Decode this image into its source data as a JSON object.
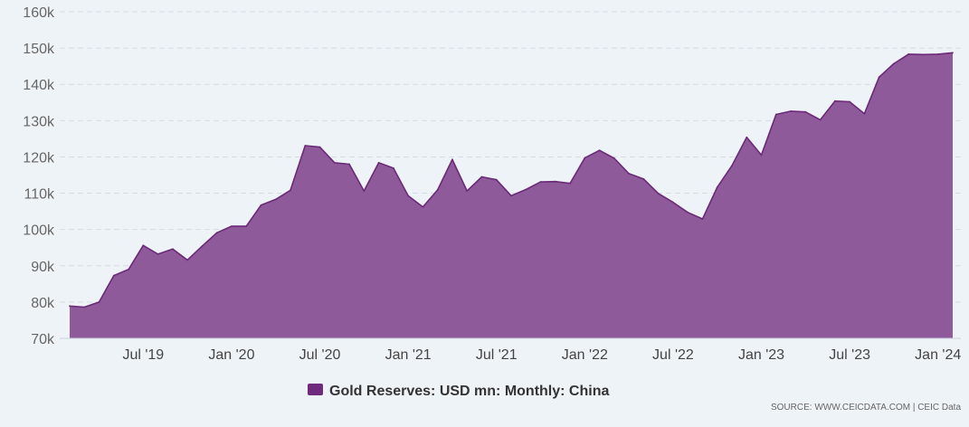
{
  "chart_data": {
    "type": "area",
    "title": "",
    "xlabel": "",
    "ylabel": "",
    "ylim": [
      70000,
      160000
    ],
    "grid": true,
    "legend_position": "bottom",
    "colors": {
      "fill": "#8e5a9a",
      "line": "#6b2a78",
      "legend": "#6f2a7e",
      "grid": "#d5dde6",
      "background": "#eef3f8"
    },
    "y_ticks": [
      {
        "value": 70000,
        "label": "70k"
      },
      {
        "value": 80000,
        "label": "80k"
      },
      {
        "value": 90000,
        "label": "90k"
      },
      {
        "value": 100000,
        "label": "100k"
      },
      {
        "value": 110000,
        "label": "110k"
      },
      {
        "value": 120000,
        "label": "120k"
      },
      {
        "value": 130000,
        "label": "130k"
      },
      {
        "value": 140000,
        "label": "140k"
      },
      {
        "value": 150000,
        "label": "150k"
      },
      {
        "value": 160000,
        "label": "160k"
      }
    ],
    "x_ticks": [
      {
        "date": "2019-07",
        "label": "Jul '19"
      },
      {
        "date": "2020-01",
        "label": "Jan '20"
      },
      {
        "date": "2020-07",
        "label": "Jul '20"
      },
      {
        "date": "2021-01",
        "label": "Jan '21"
      },
      {
        "date": "2021-07",
        "label": "Jul '21"
      },
      {
        "date": "2022-01",
        "label": "Jan '22"
      },
      {
        "date": "2022-07",
        "label": "Jul '22"
      },
      {
        "date": "2023-01",
        "label": "Jan '23"
      },
      {
        "date": "2023-07",
        "label": "Jul '23"
      },
      {
        "date": "2024-01",
        "label": "Jan '24"
      }
    ],
    "series": [
      {
        "name": "Gold Reserves: USD mn: Monthly: China",
        "x": [
          "2019-02",
          "2019-03",
          "2019-04",
          "2019-05",
          "2019-06",
          "2019-07",
          "2019-08",
          "2019-09",
          "2019-10",
          "2019-11",
          "2019-12",
          "2020-01",
          "2020-02",
          "2020-03",
          "2020-04",
          "2020-05",
          "2020-06",
          "2020-07",
          "2020-08",
          "2020-09",
          "2020-10",
          "2020-11",
          "2020-12",
          "2021-01",
          "2021-02",
          "2021-03",
          "2021-04",
          "2021-05",
          "2021-06",
          "2021-07",
          "2021-08",
          "2021-09",
          "2021-10",
          "2021-11",
          "2021-12",
          "2022-01",
          "2022-02",
          "2022-03",
          "2022-04",
          "2022-05",
          "2022-06",
          "2022-07",
          "2022-08",
          "2022-09",
          "2022-10",
          "2022-11",
          "2022-12",
          "2023-01",
          "2023-02",
          "2023-03",
          "2023-04",
          "2023-05",
          "2023-06",
          "2023-07",
          "2023-08",
          "2023-09",
          "2023-10",
          "2023-11",
          "2023-12",
          "2024-01",
          "2024-02"
        ],
        "values": [
          78900,
          78600,
          80000,
          87300,
          89000,
          95600,
          93200,
          94600,
          91600,
          95400,
          99100,
          100900,
          100900,
          106700,
          108300,
          110800,
          123100,
          122700,
          118400,
          118000,
          110600,
          118400,
          116900,
          109300,
          106200,
          110900,
          119300,
          110600,
          114500,
          113700,
          109300,
          111000,
          113100,
          113200,
          112700,
          119700,
          121800,
          119600,
          115400,
          113900,
          109900,
          107500,
          104700,
          102900,
          111600,
          117600,
          125400,
          120500,
          131700,
          132600,
          132400,
          130200,
          135400,
          135200,
          131900,
          142000,
          145700,
          148300,
          148200,
          148300,
          148700
        ]
      }
    ]
  },
  "legend": {
    "label": "Gold Reserves: USD mn: Monthly: China"
  },
  "source": {
    "text": "SOURCE: WWW.CEICDATA.COM | CEIC Data"
  }
}
